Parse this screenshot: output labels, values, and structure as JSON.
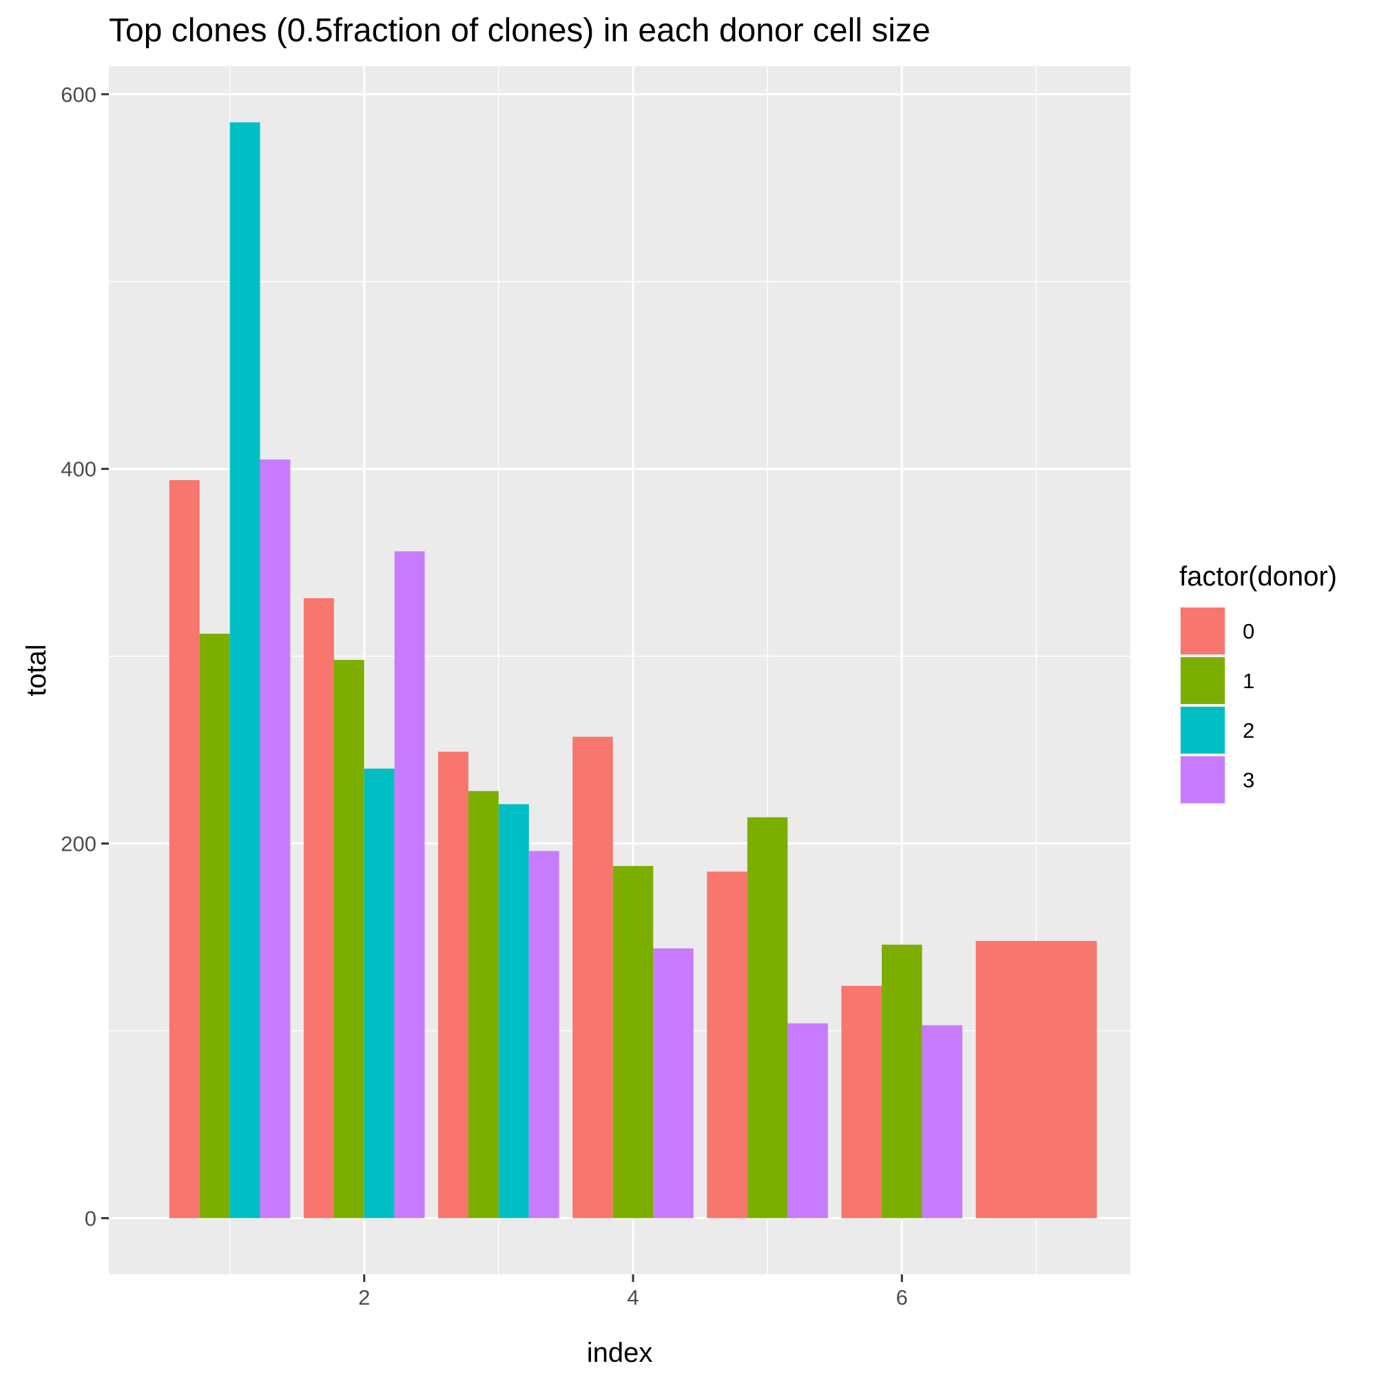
{
  "chart_data": {
    "type": "bar",
    "title": "Top clones (0.5fraction of clones) in each donor cell size",
    "xlabel": "index",
    "ylabel": "total",
    "xlim": [
      0.1,
      7.7
    ],
    "ylim": [
      -30,
      615
    ],
    "x_ticks": [
      2,
      4,
      6
    ],
    "y_ticks": [
      0,
      200,
      400,
      600
    ],
    "grid": true,
    "legend": {
      "title": "factor(donor)",
      "position": "right"
    },
    "series": [
      {
        "name": "0",
        "color": "#F8766D",
        "points": [
          {
            "x": 1,
            "y": 394
          },
          {
            "x": 2,
            "y": 331
          },
          {
            "x": 3,
            "y": 249
          },
          {
            "x": 4,
            "y": 257
          },
          {
            "x": 5,
            "y": 185
          },
          {
            "x": 6,
            "y": 124
          },
          {
            "x": 7,
            "y": 148
          }
        ]
      },
      {
        "name": "1",
        "color": "#7CAE00",
        "points": [
          {
            "x": 1,
            "y": 312
          },
          {
            "x": 2,
            "y": 298
          },
          {
            "x": 3,
            "y": 228
          },
          {
            "x": 4,
            "y": 188
          },
          {
            "x": 5,
            "y": 214
          },
          {
            "x": 6,
            "y": 146
          }
        ]
      },
      {
        "name": "2",
        "color": "#00BFC4",
        "points": [
          {
            "x": 1,
            "y": 585
          },
          {
            "x": 2,
            "y": 240
          },
          {
            "x": 3,
            "y": 221
          }
        ]
      },
      {
        "name": "3",
        "color": "#C77CFF",
        "points": [
          {
            "x": 1,
            "y": 405
          },
          {
            "x": 2,
            "y": 356
          },
          {
            "x": 3,
            "y": 196
          },
          {
            "x": 4,
            "y": 144
          },
          {
            "x": 5,
            "y": 104
          },
          {
            "x": 6,
            "y": 103
          }
        ]
      }
    ]
  }
}
